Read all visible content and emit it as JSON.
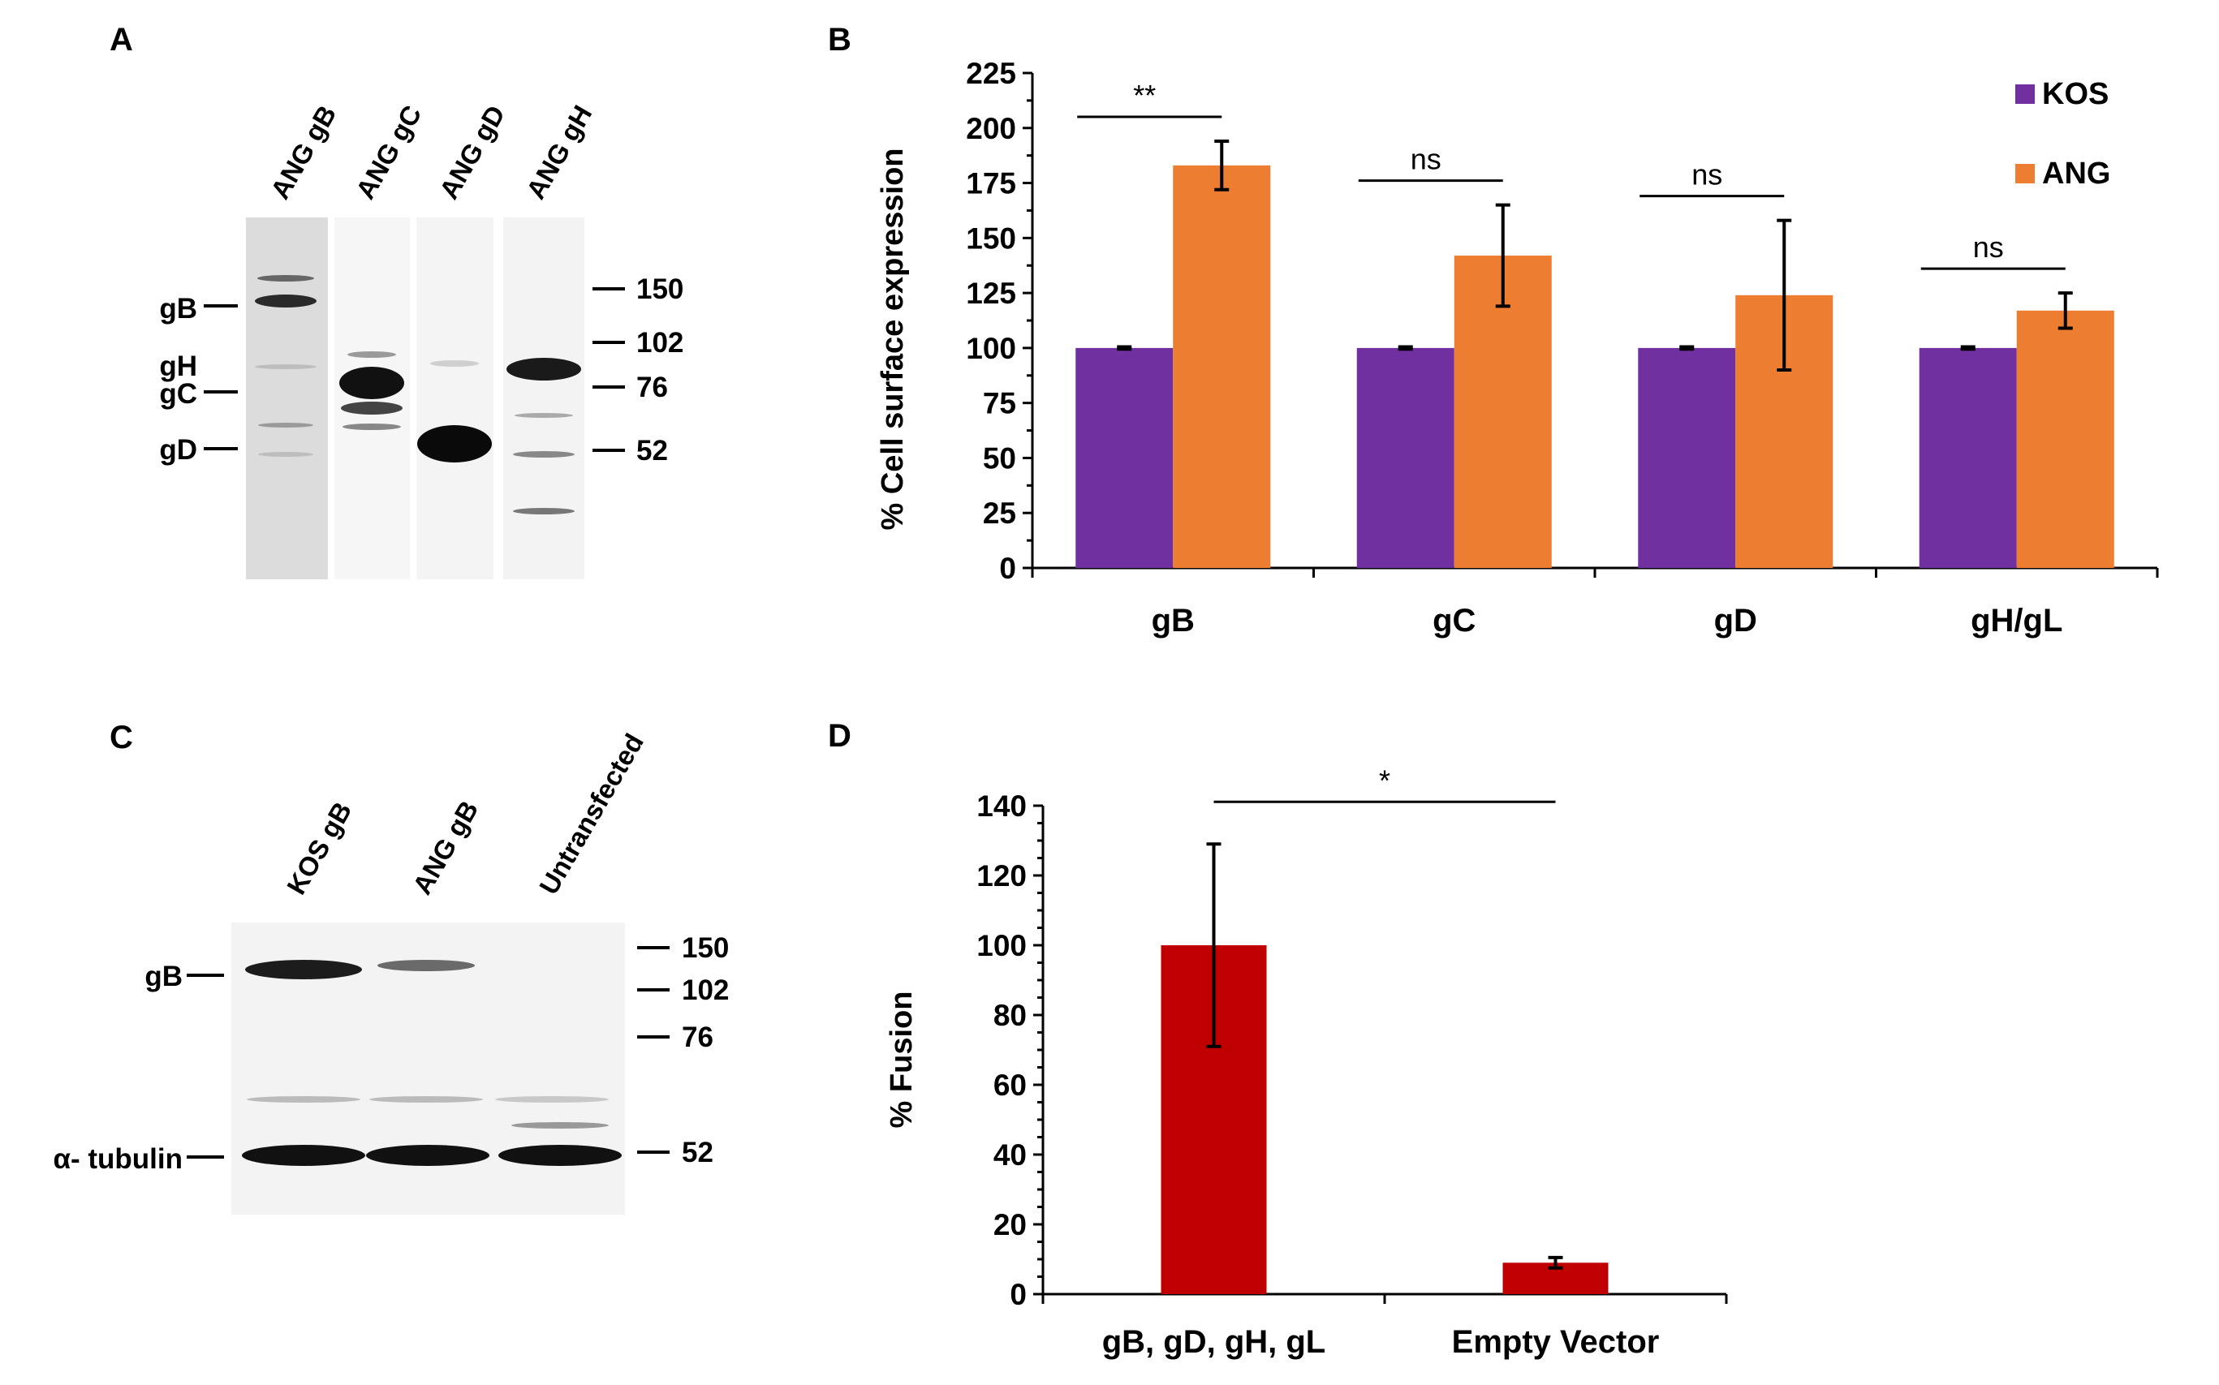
{
  "panels": {
    "A": {
      "letter": "A",
      "lanes": [
        "ANG gB",
        "ANG gC",
        "ANG gD",
        "ANG gH"
      ],
      "band_labels": [
        "gB",
        "gH",
        "gC",
        "gD"
      ],
      "markers": [
        "150",
        "102",
        "76",
        "52"
      ]
    },
    "C": {
      "letter": "C",
      "lanes": [
        "KOS gB",
        "ANG gB",
        "Untransfected"
      ],
      "band_labels": [
        "gB",
        "α- tubulin"
      ],
      "markers": [
        "150",
        "102",
        "76",
        "52"
      ]
    }
  },
  "chart_data": [
    {
      "id": "B",
      "letter": "B",
      "type": "bar",
      "title": "",
      "xlabel": "",
      "ylabel": "% Cell surface expression",
      "categories": [
        "gB",
        "gC",
        "gD",
        "gH/gL"
      ],
      "ylim": [
        0,
        225
      ],
      "yticks": [
        0,
        25,
        50,
        75,
        100,
        125,
        150,
        175,
        200,
        225
      ],
      "legend_position": "top-right",
      "series": [
        {
          "name": "KOS",
          "color": "#7030a0",
          "values": [
            100,
            100,
            100,
            100
          ],
          "errors": [
            0.5,
            0.5,
            0.5,
            0.5
          ]
        },
        {
          "name": "ANG",
          "color": "#ed7d31",
          "values": [
            183,
            142,
            124,
            117
          ],
          "errors": [
            11,
            23,
            34,
            8
          ]
        }
      ],
      "significance": [
        "**",
        "ns",
        "ns",
        "ns"
      ]
    },
    {
      "id": "D",
      "letter": "D",
      "type": "bar",
      "title": "",
      "xlabel": "",
      "ylabel": "% Fusion",
      "categories": [
        "gB, gD, gH, gL",
        "Empty Vector"
      ],
      "values": [
        100,
        9
      ],
      "errors": [
        29,
        1.5
      ],
      "color": "#c00000",
      "ylim": [
        0,
        140
      ],
      "yticks": [
        0,
        20,
        40,
        60,
        80,
        100,
        120,
        140
      ],
      "significance": "*"
    }
  ]
}
